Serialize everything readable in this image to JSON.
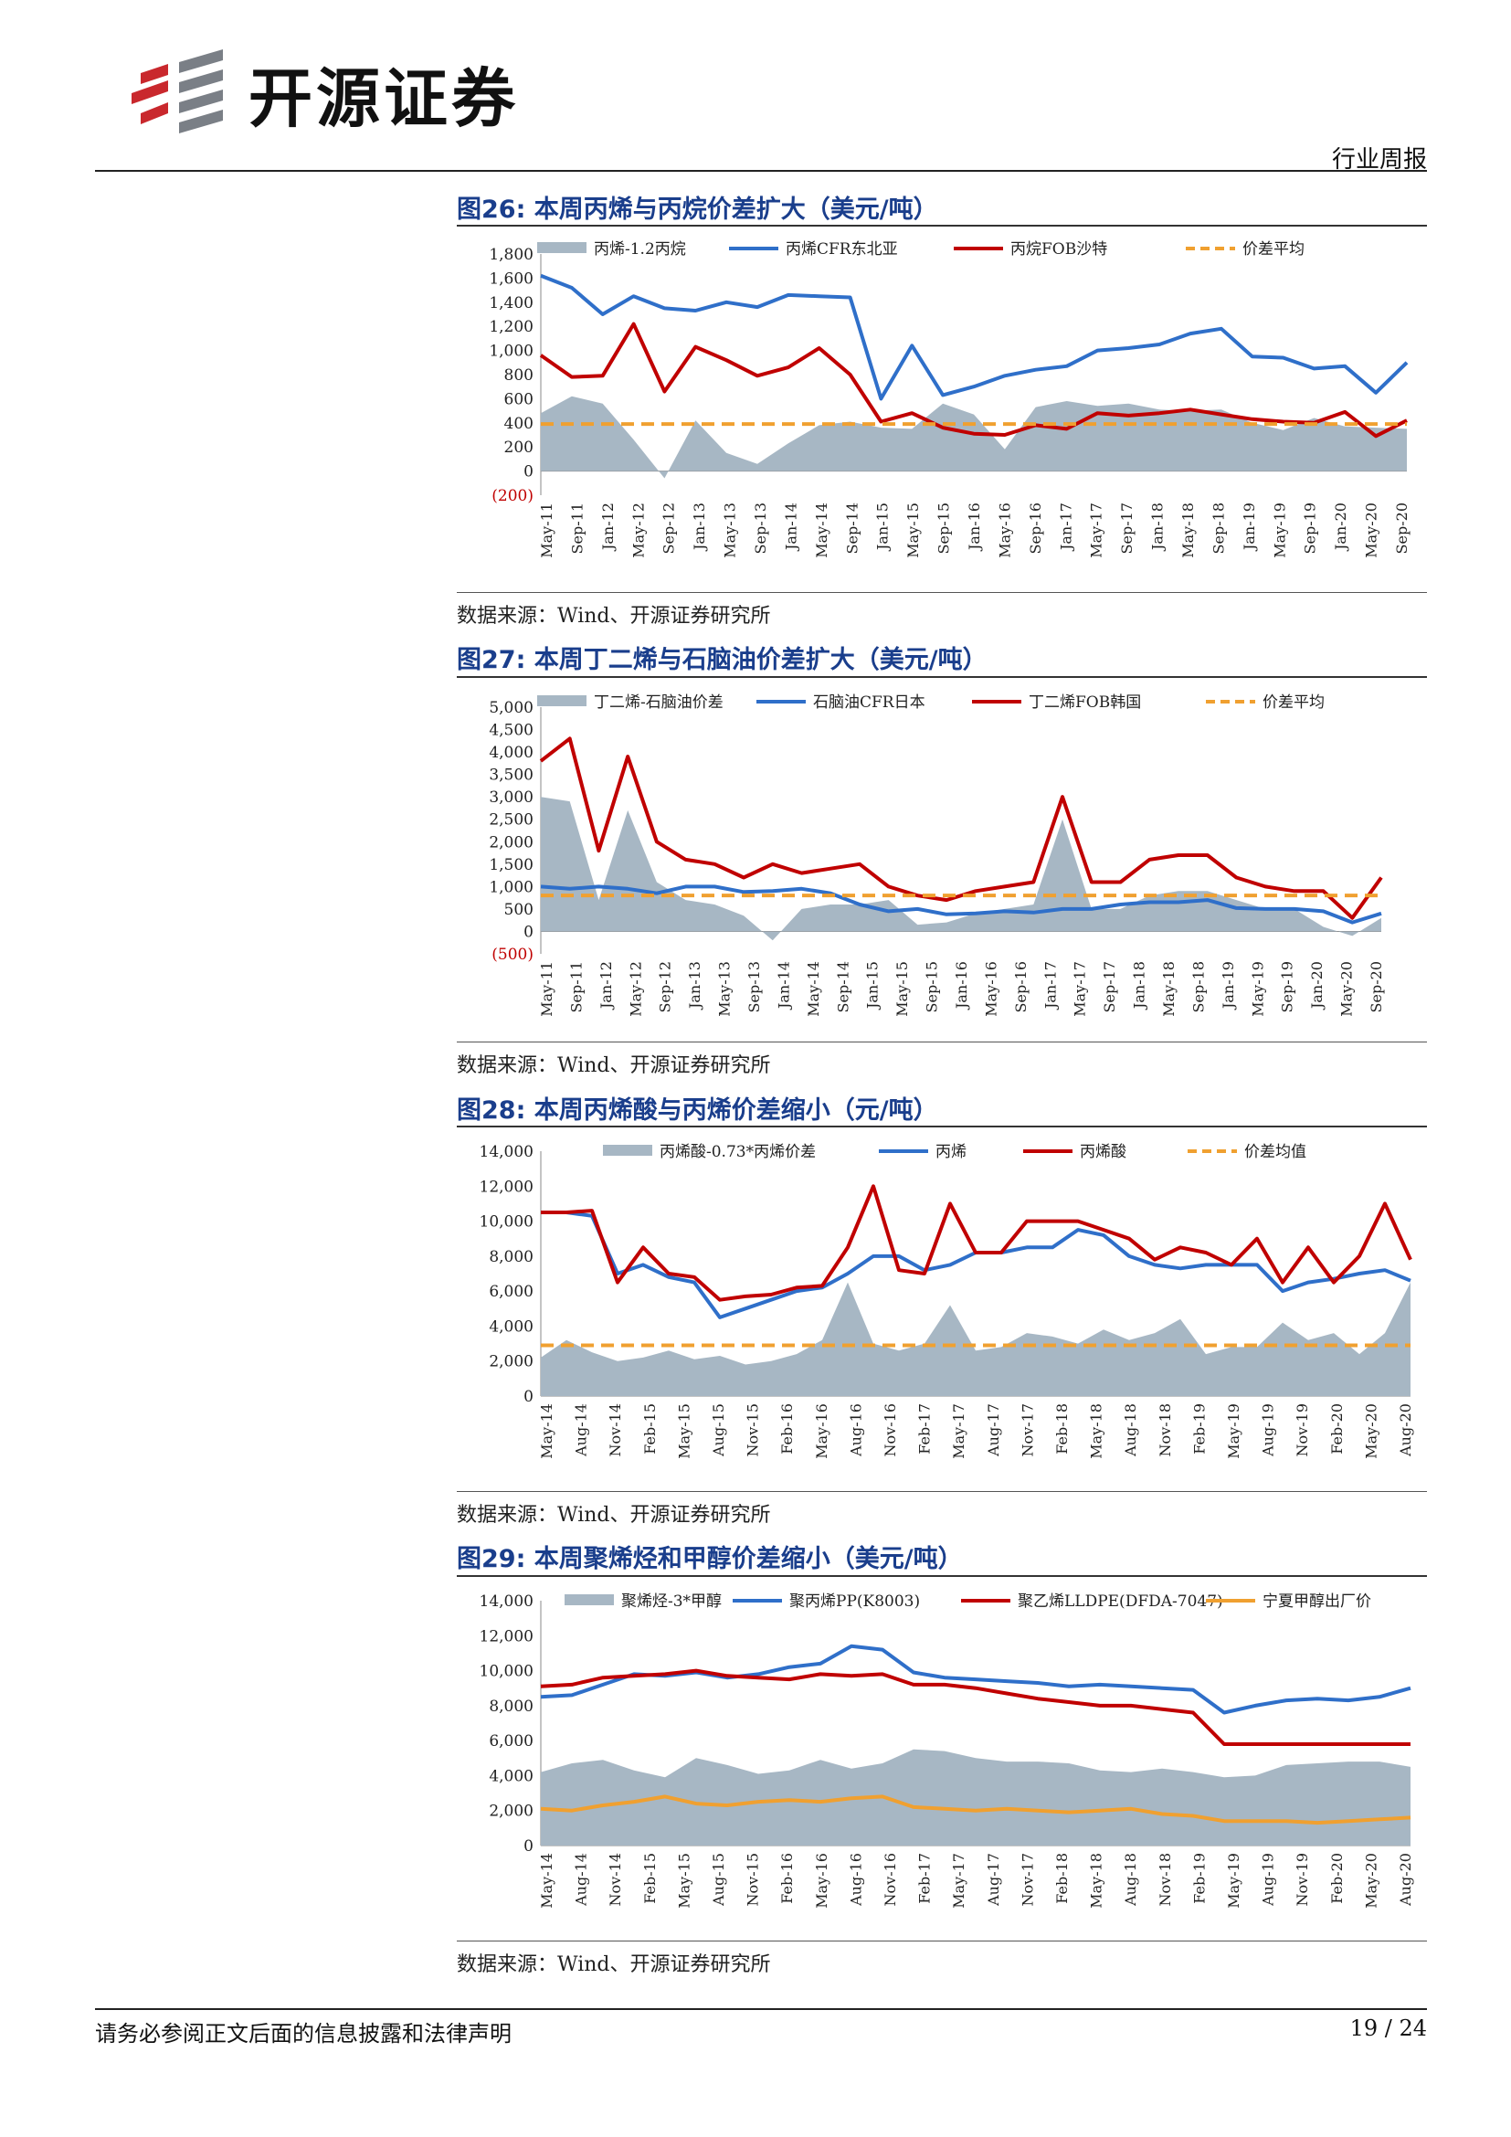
{
  "header": {
    "company": "开源证券",
    "report_type": "行业周报"
  },
  "colors": {
    "area": "#a7b7c4",
    "blue": "#2f6fc9",
    "red": "#c00000",
    "orange": "#f0a030",
    "title": "#1a3e8c"
  },
  "source_note": "数据来源：Wind、开源证券研究所",
  "figures": [
    {
      "title": "图26:  本周丙烯与丙烷价差扩大（美元/吨）"
    },
    {
      "title": "图27:  本周丁二烯与石脑油价差扩大（美元/吨）"
    },
    {
      "title": "图28:  本周丙烯酸与丙烯价差缩小（元/吨）"
    },
    {
      "title": "图29:  本周聚烯烃和甲醇价差缩小（美元/吨）"
    }
  ],
  "chart_data": [
    {
      "type": "line",
      "ylim": [
        -200,
        1800
      ],
      "yticks": [
        "(200)",
        "0",
        "200",
        "400",
        "600",
        "800",
        "1,000",
        "1,200",
        "1,400",
        "1,600",
        "1,800"
      ],
      "ytick_values": [
        -200,
        0,
        200,
        400,
        600,
        800,
        1000,
        1200,
        1400,
        1600,
        1800
      ],
      "xticks": [
        "May-11",
        "Sep-11",
        "Jan-12",
        "May-12",
        "Sep-12",
        "Jan-13",
        "May-13",
        "Sep-13",
        "Jan-14",
        "May-14",
        "Sep-14",
        "Jan-15",
        "May-15",
        "Sep-15",
        "Jan-16",
        "May-16",
        "Sep-16",
        "Jan-17",
        "May-17",
        "Sep-17",
        "Jan-18",
        "May-18",
        "Sep-18",
        "Jan-19",
        "May-19",
        "Sep-19",
        "Jan-20",
        "May-20",
        "Sep-20"
      ],
      "average": 390,
      "series": [
        {
          "name": "丙烯-1.2丙烷",
          "kind": "area",
          "values": [
            480,
            620,
            560,
            260,
            -60,
            420,
            150,
            60,
            230,
            380,
            410,
            360,
            350,
            560,
            470,
            180,
            530,
            580,
            540,
            560,
            510,
            500,
            510,
            400,
            340,
            440,
            370,
            360,
            350
          ]
        },
        {
          "name": "丙烯CFR东北亚",
          "kind": "line",
          "values": [
            1620,
            1520,
            1300,
            1450,
            1350,
            1330,
            1400,
            1360,
            1460,
            1450,
            1440,
            600,
            1040,
            630,
            700,
            790,
            840,
            870,
            1000,
            1020,
            1050,
            1140,
            1180,
            950,
            940,
            850,
            870,
            650,
            900
          ]
        },
        {
          "name": "丙烷FOB沙特",
          "kind": "line",
          "values": [
            960,
            780,
            790,
            1220,
            660,
            1030,
            920,
            790,
            860,
            1020,
            800,
            410,
            480,
            360,
            310,
            300,
            380,
            350,
            480,
            460,
            480,
            510,
            470,
            430,
            410,
            400,
            490,
            290,
            420
          ]
        },
        {
          "name": "价差平均",
          "kind": "dashed",
          "values": [
            390,
            390
          ]
        }
      ]
    },
    {
      "type": "line",
      "ylim": [
        -500,
        5000
      ],
      "yticks": [
        "(500)",
        "0",
        "500",
        "1,000",
        "1,500",
        "2,000",
        "2,500",
        "3,000",
        "3,500",
        "4,000",
        "4,500",
        "5,000"
      ],
      "ytick_values": [
        -500,
        0,
        500,
        1000,
        1500,
        2000,
        2500,
        3000,
        3500,
        4000,
        4500,
        5000
      ],
      "xticks": [
        "May-11",
        "Sep-11",
        "Jan-12",
        "May-12",
        "Sep-12",
        "Jan-13",
        "May-13",
        "Sep-13",
        "Jan-14",
        "May-14",
        "Sep-14",
        "Jan-15",
        "May-15",
        "Sep-15",
        "Jan-16",
        "May-16",
        "Sep-16",
        "Jan-17",
        "May-17",
        "Sep-17",
        "Jan-18",
        "May-18",
        "Sep-18",
        "Jan-19",
        "May-19",
        "Sep-19",
        "Jan-20",
        "May-20",
        "Sep-20"
      ],
      "average": 800,
      "series": [
        {
          "name": "丁二烯-石脑油价差",
          "kind": "area",
          "values": [
            3000,
            2900,
            700,
            2700,
            1100,
            700,
            600,
            350,
            -200,
            500,
            600,
            600,
            700,
            150,
            200,
            400,
            500,
            600,
            2500,
            500,
            500,
            800,
            900,
            900,
            700,
            500,
            500,
            100,
            -100,
            300
          ]
        },
        {
          "name": "石脑油CFR日本",
          "kind": "line",
          "values": [
            1000,
            950,
            1000,
            950,
            850,
            1000,
            1000,
            880,
            900,
            950,
            850,
            600,
            450,
            500,
            380,
            400,
            450,
            420,
            500,
            500,
            600,
            650,
            650,
            700,
            520,
            500,
            500,
            450,
            200,
            400
          ]
        },
        {
          "name": "丁二烯FOB韩国",
          "kind": "line",
          "values": [
            3800,
            4300,
            1800,
            3900,
            2000,
            1600,
            1500,
            1200,
            1500,
            1300,
            1400,
            1500,
            1000,
            800,
            700,
            900,
            1000,
            1100,
            3000,
            1100,
            1100,
            1600,
            1700,
            1700,
            1200,
            1000,
            900,
            900,
            300,
            1200
          ]
        },
        {
          "name": "价差平均",
          "kind": "dashed",
          "values": [
            800,
            800
          ]
        }
      ]
    },
    {
      "type": "line",
      "ylim": [
        0,
        14000
      ],
      "yticks": [
        "0",
        "2,000",
        "4,000",
        "6,000",
        "8,000",
        "10,000",
        "12,000",
        "14,000"
      ],
      "ytick_values": [
        0,
        2000,
        4000,
        6000,
        8000,
        10000,
        12000,
        14000
      ],
      "xticks": [
        "May-14",
        "Aug-14",
        "Nov-14",
        "Feb-15",
        "May-15",
        "Aug-15",
        "Nov-15",
        "Feb-16",
        "May-16",
        "Aug-16",
        "Nov-16",
        "Feb-17",
        "May-17",
        "Aug-17",
        "Nov-17",
        "Feb-18",
        "May-18",
        "Aug-18",
        "Nov-18",
        "Feb-19",
        "May-19",
        "Aug-19",
        "Nov-19",
        "Feb-20",
        "May-20",
        "Aug-20"
      ],
      "average": 2900,
      "series": [
        {
          "name": "丙烯酸-0.73*丙烯价差",
          "kind": "area",
          "values": [
            2200,
            3200,
            2500,
            2000,
            2200,
            2600,
            2100,
            2300,
            1800,
            2000,
            2400,
            3200,
            6500,
            3000,
            2600,
            3000,
            5200,
            2600,
            2800,
            3600,
            3400,
            3000,
            3800,
            3200,
            3600,
            4400,
            2400,
            2800,
            2800,
            4200,
            3200,
            3600,
            2400,
            3600,
            6500
          ]
        },
        {
          "name": "丙烯",
          "kind": "line",
          "values": [
            10500,
            10500,
            10300,
            7000,
            7500,
            6800,
            6500,
            4500,
            5000,
            5500,
            6000,
            6200,
            7000,
            8000,
            8000,
            7200,
            7500,
            8200,
            8200,
            8500,
            8500,
            9500,
            9200,
            8000,
            7500,
            7300,
            7500,
            7500,
            7500,
            6000,
            6500,
            6700,
            7000,
            7200,
            6600
          ]
        },
        {
          "name": "丙烯酸",
          "kind": "line",
          "values": [
            10500,
            10500,
            10600,
            6500,
            8500,
            7000,
            6800,
            5500,
            5700,
            5800,
            6200,
            6300,
            8500,
            12000,
            7200,
            7000,
            11000,
            8200,
            8200,
            10000,
            10000,
            10000,
            9500,
            9000,
            7800,
            8500,
            8200,
            7500,
            9000,
            6500,
            8500,
            6500,
            8000,
            11000,
            7800
          ]
        },
        {
          "name": "价差均值",
          "kind": "dashed",
          "values": [
            2900,
            2900
          ]
        }
      ]
    },
    {
      "type": "line",
      "ylim": [
        0,
        14000
      ],
      "yticks": [
        "0",
        "2,000",
        "4,000",
        "6,000",
        "8,000",
        "10,000",
        "12,000",
        "14,000"
      ],
      "ytick_values": [
        0,
        2000,
        4000,
        6000,
        8000,
        10000,
        12000,
        14000
      ],
      "xticks": [
        "May-14",
        "Aug-14",
        "Nov-14",
        "Feb-15",
        "May-15",
        "Aug-15",
        "Nov-15",
        "Feb-16",
        "May-16",
        "Aug-16",
        "Nov-16",
        "Feb-17",
        "May-17",
        "Aug-17",
        "Nov-17",
        "Feb-18",
        "May-18",
        "Aug-18",
        "Nov-18",
        "Feb-19",
        "May-19",
        "Aug-19",
        "Nov-19",
        "Feb-20",
        "May-20",
        "Aug-20"
      ],
      "series": [
        {
          "name": "聚烯烃-3*甲醇",
          "kind": "area",
          "values": [
            4200,
            4700,
            4900,
            4300,
            3900,
            5000,
            4600,
            4100,
            4300,
            4900,
            4400,
            4700,
            5500,
            5400,
            5000,
            4800,
            4800,
            4700,
            4300,
            4200,
            4400,
            4200,
            3900,
            4000,
            4600,
            4700,
            4800,
            4800,
            4500
          ]
        },
        {
          "name": "聚丙烯PP(K8003)",
          "kind": "line",
          "values": [
            8500,
            8600,
            9200,
            9800,
            9700,
            9900,
            9600,
            9800,
            10200,
            10400,
            11400,
            11200,
            9900,
            9600,
            9500,
            9400,
            9300,
            9100,
            9200,
            9100,
            9000,
            8900,
            7600,
            8000,
            8300,
            8400,
            8300,
            8500,
            9000
          ]
        },
        {
          "name": "聚乙烯LLDPE(DFDA-7047)",
          "kind": "line",
          "values": [
            9100,
            9200,
            9600,
            9700,
            9800,
            10000,
            9700,
            9600,
            9500,
            9800,
            9700,
            9800,
            9200,
            9200,
            9000,
            8700,
            8400,
            8200,
            8000,
            8000,
            7800,
            7600,
            5800,
            5800,
            5800,
            5800,
            5800,
            5800,
            5800
          ]
        },
        {
          "name": "宁夏甲醇出厂价",
          "kind": "line",
          "values": [
            2100,
            2000,
            2300,
            2500,
            2800,
            2400,
            2300,
            2500,
            2600,
            2500,
            2700,
            2800,
            2200,
            2100,
            2000,
            2100,
            2000,
            1900,
            2000,
            2100,
            1800,
            1700,
            1400,
            1400,
            1400,
            1300,
            1400,
            1500,
            1600
          ]
        }
      ]
    }
  ],
  "footer": {
    "disclaimer": "请务必参阅正文后面的信息披露和法律声明",
    "page": "19 / 24"
  }
}
